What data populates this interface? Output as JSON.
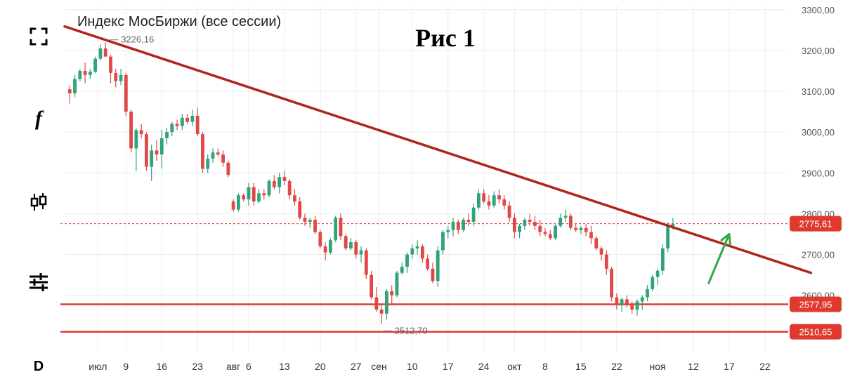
{
  "chart_data": {
    "type": "candlestick",
    "title": "Индекс МосБиржи (все сессии)",
    "annotation_title": "Рис 1",
    "y_ticks": [
      "3300,00",
      "3200,00",
      "3100,00",
      "3000,00",
      "2900,00",
      "2800,00",
      "2700,00",
      "2600,00"
    ],
    "ylim": [
      2460,
      3310
    ],
    "x_ticks": [
      {
        "label": "июл",
        "t": 5.5
      },
      {
        "label": "9",
        "t": 11
      },
      {
        "label": "16",
        "t": 18
      },
      {
        "label": "23",
        "t": 25
      },
      {
        "label": "авг",
        "t": 32
      },
      {
        "label": "6",
        "t": 35
      },
      {
        "label": "13",
        "t": 42
      },
      {
        "label": "20",
        "t": 49
      },
      {
        "label": "27",
        "t": 56
      },
      {
        "label": "сен",
        "t": 60.5
      },
      {
        "label": "10",
        "t": 67
      },
      {
        "label": "17",
        "t": 74
      },
      {
        "label": "24",
        "t": 81
      },
      {
        "label": "окт",
        "t": 87
      },
      {
        "label": "8",
        "t": 93
      },
      {
        "label": "15",
        "t": 100
      },
      {
        "label": "22",
        "t": 107
      },
      {
        "label": "ноя",
        "t": 115
      },
      {
        "label": "12",
        "t": 122
      },
      {
        "label": "17",
        "t": 129
      },
      {
        "label": "22",
        "t": 136
      }
    ],
    "candles": [
      [
        0,
        3105,
        3115,
        3070,
        3095
      ],
      [
        1,
        3095,
        3140,
        3085,
        3130
      ],
      [
        2,
        3130,
        3155,
        3125,
        3150
      ],
      [
        3,
        3150,
        3170,
        3120,
        3140
      ],
      [
        4,
        3140,
        3155,
        3130,
        3148
      ],
      [
        5,
        3148,
        3185,
        3145,
        3180
      ],
      [
        6,
        3180,
        3215,
        3175,
        3205
      ],
      [
        7,
        3205,
        3220,
        3190,
        3185
      ],
      [
        8,
        3185,
        3190,
        3120,
        3145
      ],
      [
        9,
        3145,
        3155,
        3110,
        3125
      ],
      [
        10,
        3125,
        3155,
        3115,
        3140
      ],
      [
        11,
        3140,
        3145,
        3040,
        3050
      ],
      [
        12,
        3050,
        3055,
        2950,
        2960
      ],
      [
        13,
        2960,
        3010,
        2905,
        3005
      ],
      [
        14,
        3005,
        3020,
        2985,
        2995
      ],
      [
        15,
        2995,
        3000,
        2905,
        2915
      ],
      [
        16,
        2915,
        2970,
        2880,
        2955
      ],
      [
        17,
        2955,
        2980,
        2930,
        2945
      ],
      [
        18,
        2945,
        3005,
        2910,
        2985
      ],
      [
        19,
        2985,
        3010,
        2970,
        3000
      ],
      [
        20,
        3000,
        3025,
        2990,
        3020
      ],
      [
        21,
        3020,
        3030,
        3005,
        3015
      ],
      [
        22,
        3015,
        3045,
        3005,
        3035
      ],
      [
        23,
        3035,
        3045,
        3020,
        3025
      ],
      [
        24,
        3025,
        3055,
        3015,
        3040
      ],
      [
        25,
        3040,
        3060,
        2990,
        2995
      ],
      [
        26,
        2995,
        3000,
        2900,
        2910
      ],
      [
        27,
        2910,
        2945,
        2900,
        2935
      ],
      [
        28,
        2935,
        2960,
        2925,
        2950
      ],
      [
        29,
        2950,
        2960,
        2940,
        2945
      ],
      [
        30,
        2945,
        2955,
        2915,
        2925
      ],
      [
        31,
        2925,
        2930,
        2890,
        2895
      ],
      [
        32,
        2830,
        2835,
        2805,
        2810
      ],
      [
        33,
        2810,
        2850,
        2805,
        2845
      ],
      [
        34,
        2845,
        2850,
        2830,
        2835
      ],
      [
        35,
        2835,
        2875,
        2820,
        2865
      ],
      [
        36,
        2865,
        2875,
        2820,
        2830
      ],
      [
        37,
        2830,
        2860,
        2825,
        2850
      ],
      [
        38,
        2850,
        2860,
        2835,
        2845
      ],
      [
        39,
        2845,
        2885,
        2840,
        2880
      ],
      [
        40,
        2880,
        2895,
        2860,
        2865
      ],
      [
        41,
        2865,
        2900,
        2850,
        2890
      ],
      [
        42,
        2890,
        2905,
        2870,
        2880
      ],
      [
        43,
        2880,
        2885,
        2835,
        2845
      ],
      [
        44,
        2845,
        2860,
        2820,
        2830
      ],
      [
        45,
        2830,
        2840,
        2785,
        2790
      ],
      [
        46,
        2790,
        2800,
        2770,
        2780
      ],
      [
        47,
        2780,
        2790,
        2765,
        2785
      ],
      [
        48,
        2785,
        2795,
        2750,
        2755
      ],
      [
        49,
        2755,
        2760,
        2715,
        2720
      ],
      [
        50,
        2720,
        2730,
        2685,
        2705
      ],
      [
        51,
        2705,
        2740,
        2700,
        2735
      ],
      [
        52,
        2735,
        2795,
        2730,
        2790
      ],
      [
        53,
        2790,
        2800,
        2735,
        2745
      ],
      [
        54,
        2745,
        2750,
        2710,
        2715
      ],
      [
        55,
        2715,
        2740,
        2710,
        2730
      ],
      [
        56,
        2730,
        2735,
        2690,
        2700
      ],
      [
        57,
        2700,
        2720,
        2680,
        2710
      ],
      [
        58,
        2710,
        2715,
        2640,
        2650
      ],
      [
        59,
        2650,
        2660,
        2590,
        2595
      ],
      [
        60,
        2595,
        2620,
        2560,
        2565
      ],
      [
        61,
        2565,
        2575,
        2530,
        2555
      ],
      [
        62,
        2555,
        2615,
        2540,
        2610
      ],
      [
        63,
        2610,
        2625,
        2580,
        2600
      ],
      [
        64,
        2600,
        2660,
        2595,
        2655
      ],
      [
        65,
        2655,
        2680,
        2650,
        2670
      ],
      [
        66,
        2670,
        2705,
        2655,
        2700
      ],
      [
        67,
        2700,
        2725,
        2690,
        2715
      ],
      [
        68,
        2715,
        2735,
        2700,
        2720
      ],
      [
        69,
        2720,
        2725,
        2680,
        2690
      ],
      [
        70,
        2690,
        2700,
        2660,
        2665
      ],
      [
        71,
        2665,
        2680,
        2630,
        2635
      ],
      [
        72,
        2635,
        2720,
        2620,
        2710
      ],
      [
        73,
        2710,
        2760,
        2700,
        2755
      ],
      [
        74,
        2755,
        2770,
        2740,
        2760
      ],
      [
        75,
        2760,
        2790,
        2745,
        2780
      ],
      [
        76,
        2780,
        2785,
        2750,
        2760
      ],
      [
        77,
        2760,
        2790,
        2755,
        2785
      ],
      [
        78,
        2785,
        2800,
        2770,
        2780
      ],
      [
        79,
        2780,
        2825,
        2770,
        2815
      ],
      [
        80,
        2815,
        2860,
        2810,
        2850
      ],
      [
        81,
        2850,
        2860,
        2825,
        2830
      ],
      [
        82,
        2830,
        2845,
        2810,
        2820
      ],
      [
        83,
        2820,
        2855,
        2815,
        2845
      ],
      [
        84,
        2845,
        2860,
        2825,
        2835
      ],
      [
        85,
        2835,
        2845,
        2810,
        2820
      ],
      [
        86,
        2820,
        2830,
        2780,
        2790
      ],
      [
        87,
        2790,
        2800,
        2740,
        2755
      ],
      [
        88,
        2755,
        2775,
        2740,
        2770
      ],
      [
        89,
        2770,
        2790,
        2760,
        2785
      ],
      [
        90,
        2785,
        2800,
        2770,
        2780
      ],
      [
        91,
        2780,
        2795,
        2760,
        2770
      ],
      [
        92,
        2770,
        2785,
        2745,
        2755
      ],
      [
        93,
        2755,
        2765,
        2745,
        2750
      ],
      [
        94,
        2750,
        2760,
        2735,
        2740
      ],
      [
        95,
        2740,
        2775,
        2735,
        2770
      ],
      [
        96,
        2770,
        2800,
        2765,
        2790
      ],
      [
        97,
        2790,
        2810,
        2780,
        2795
      ],
      [
        98,
        2795,
        2800,
        2760,
        2765
      ],
      [
        99,
        2765,
        2775,
        2755,
        2760
      ],
      [
        100,
        2760,
        2770,
        2750,
        2765
      ],
      [
        101,
        2765,
        2775,
        2745,
        2755
      ],
      [
        102,
        2755,
        2770,
        2725,
        2740
      ],
      [
        103,
        2740,
        2745,
        2710,
        2715
      ],
      [
        104,
        2715,
        2720,
        2685,
        2700
      ],
      [
        105,
        2700,
        2710,
        2650,
        2665
      ],
      [
        106,
        2665,
        2670,
        2585,
        2595
      ],
      [
        107,
        2595,
        2605,
        2565,
        2575
      ],
      [
        108,
        2575,
        2595,
        2560,
        2590
      ],
      [
        109,
        2590,
        2600,
        2570,
        2580
      ],
      [
        110,
        2580,
        2585,
        2555,
        2565
      ],
      [
        111,
        2565,
        2590,
        2550,
        2585
      ],
      [
        112,
        2585,
        2600,
        2565,
        2595
      ],
      [
        113,
        2595,
        2625,
        2585,
        2615
      ],
      [
        114,
        2615,
        2650,
        2610,
        2645
      ],
      [
        115,
        2645,
        2665,
        2625,
        2660
      ],
      [
        116,
        2660,
        2725,
        2650,
        2715
      ],
      [
        117,
        2715,
        2780,
        2705,
        2770
      ],
      [
        118,
        2770,
        2790,
        2760,
        2775
      ]
    ],
    "series": [
      {
        "type": "trendline",
        "from": [
          -1,
          3259
        ],
        "to": [
          145,
          2655
        ],
        "color": "#b0241e"
      },
      {
        "type": "hline",
        "value": 2577.95,
        "label": "2577,95",
        "color": "#e03a2f"
      },
      {
        "type": "hline",
        "value": 2510.65,
        "label": "2510,65",
        "color": "#e03a2f"
      },
      {
        "type": "price-line",
        "value": 2775.61,
        "label": "2775,61",
        "color": "#e03a2f"
      }
    ],
    "annotations": [
      {
        "label": "3226,16",
        "t": 7,
        "value": 3226.16
      },
      {
        "label": "2512,70",
        "t": 60.5,
        "value": 2512.7
      }
    ],
    "arrow": {
      "from": [
        125,
        2630
      ],
      "to": [
        129,
        2750
      ],
      "color": "#2fa84a"
    },
    "colors": {
      "up": "#2fa37a",
      "down": "#e04848",
      "grid": "#ececec",
      "axis_text": "#555555"
    }
  },
  "toolbar": {
    "font_tool": "f",
    "interval": "D"
  }
}
